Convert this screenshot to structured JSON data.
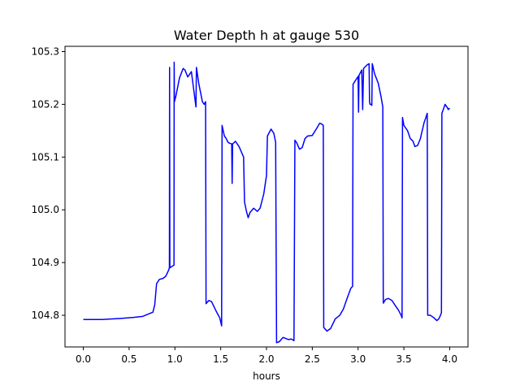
{
  "chart_data": {
    "type": "line",
    "title": "Water Depth h at gauge 530",
    "xlabel": "hours",
    "ylabel": "",
    "xlim": [
      -0.2,
      4.2
    ],
    "ylim": [
      104.74,
      105.31
    ],
    "xticks": [
      0.0,
      0.5,
      1.0,
      1.5,
      2.0,
      2.5,
      3.0,
      3.5,
      4.0
    ],
    "xtick_labels": [
      "0.0",
      "0.5",
      "1.0",
      "1.5",
      "2.0",
      "2.5",
      "3.0",
      "3.5",
      "4.0"
    ],
    "yticks": [
      104.8,
      104.9,
      105.0,
      105.1,
      105.2,
      105.3
    ],
    "ytick_labels": [
      "104.8",
      "104.9",
      "105.0",
      "105.1",
      "105.2",
      "105.3"
    ],
    "grid": false,
    "series": [
      {
        "color": "#0000ff",
        "points": [
          [
            0.0,
            104.792
          ],
          [
            0.2,
            104.792
          ],
          [
            0.4,
            104.794
          ],
          [
            0.55,
            104.796
          ],
          [
            0.65,
            104.798
          ],
          [
            0.72,
            104.803
          ],
          [
            0.76,
            104.806
          ],
          [
            0.78,
            104.82
          ],
          [
            0.8,
            104.86
          ],
          [
            0.83,
            104.868
          ],
          [
            0.87,
            104.87
          ],
          [
            0.9,
            104.874
          ],
          [
            0.93,
            104.885
          ],
          [
            0.94,
            104.89
          ],
          [
            0.942,
            105.27
          ],
          [
            0.945,
            104.89
          ],
          [
            0.97,
            104.893
          ],
          [
            0.99,
            104.895
          ],
          [
            0.992,
            105.28
          ],
          [
            0.995,
            105.205
          ],
          [
            1.01,
            105.215
          ],
          [
            1.05,
            105.25
          ],
          [
            1.09,
            105.268
          ],
          [
            1.11,
            105.265
          ],
          [
            1.14,
            105.252
          ],
          [
            1.18,
            105.262
          ],
          [
            1.2,
            105.235
          ],
          [
            1.23,
            105.195
          ],
          [
            1.235,
            105.27
          ],
          [
            1.26,
            105.24
          ],
          [
            1.3,
            105.205
          ],
          [
            1.32,
            105.2
          ],
          [
            1.335,
            105.205
          ],
          [
            1.34,
            104.822
          ],
          [
            1.37,
            104.828
          ],
          [
            1.4,
            104.826
          ],
          [
            1.45,
            104.808
          ],
          [
            1.49,
            104.795
          ],
          [
            1.51,
            104.78
          ],
          [
            1.515,
            105.16
          ],
          [
            1.54,
            105.14
          ],
          [
            1.56,
            105.135
          ],
          [
            1.58,
            105.128
          ],
          [
            1.6,
            105.126
          ],
          [
            1.62,
            105.125
          ],
          [
            1.625,
            105.05
          ],
          [
            1.63,
            105.125
          ],
          [
            1.65,
            105.128
          ],
          [
            1.66,
            105.13
          ],
          [
            1.7,
            105.12
          ],
          [
            1.75,
            105.1
          ],
          [
            1.76,
            105.015
          ],
          [
            1.78,
            104.998
          ],
          [
            1.8,
            104.985
          ],
          [
            1.82,
            104.995
          ],
          [
            1.86,
            105.003
          ],
          [
            1.9,
            104.997
          ],
          [
            1.93,
            105.003
          ],
          [
            1.97,
            105.03
          ],
          [
            2.0,
            105.065
          ],
          [
            2.01,
            105.14
          ],
          [
            2.05,
            105.153
          ],
          [
            2.08,
            105.145
          ],
          [
            2.1,
            105.128
          ],
          [
            2.11,
            104.748
          ],
          [
            2.14,
            104.75
          ],
          [
            2.18,
            104.758
          ],
          [
            2.21,
            104.756
          ],
          [
            2.24,
            104.754
          ],
          [
            2.27,
            104.755
          ],
          [
            2.3,
            104.752
          ],
          [
            2.31,
            105.132
          ],
          [
            2.33,
            105.127
          ],
          [
            2.36,
            105.115
          ],
          [
            2.39,
            105.118
          ],
          [
            2.42,
            105.135
          ],
          [
            2.45,
            105.14
          ],
          [
            2.5,
            105.141
          ],
          [
            2.55,
            105.155
          ],
          [
            2.58,
            105.164
          ],
          [
            2.6,
            105.163
          ],
          [
            2.62,
            105.16
          ],
          [
            2.625,
            104.777
          ],
          [
            2.66,
            104.77
          ],
          [
            2.7,
            104.775
          ],
          [
            2.75,
            104.793
          ],
          [
            2.8,
            104.8
          ],
          [
            2.84,
            104.812
          ],
          [
            2.88,
            104.832
          ],
          [
            2.92,
            104.851
          ],
          [
            2.94,
            104.855
          ],
          [
            2.945,
            105.238
          ],
          [
            2.97,
            105.245
          ],
          [
            2.99,
            105.25
          ],
          [
            3.0,
            105.253
          ],
          [
            3.005,
            105.185
          ],
          [
            3.01,
            105.255
          ],
          [
            3.04,
            105.265
          ],
          [
            3.05,
            105.19
          ],
          [
            3.06,
            105.268
          ],
          [
            3.1,
            105.275
          ],
          [
            3.12,
            105.277
          ],
          [
            3.125,
            105.205
          ],
          [
            3.13,
            105.2
          ],
          [
            3.14,
            105.2
          ],
          [
            3.15,
            105.198
          ],
          [
            3.155,
            105.277
          ],
          [
            3.18,
            105.258
          ],
          [
            3.22,
            105.24
          ],
          [
            3.25,
            105.215
          ],
          [
            3.27,
            105.195
          ],
          [
            3.275,
            104.823
          ],
          [
            3.3,
            104.83
          ],
          [
            3.33,
            104.832
          ],
          [
            3.37,
            104.828
          ],
          [
            3.4,
            104.82
          ],
          [
            3.44,
            104.81
          ],
          [
            3.47,
            104.8
          ],
          [
            3.48,
            104.795
          ],
          [
            3.485,
            105.175
          ],
          [
            3.5,
            105.16
          ],
          [
            3.54,
            105.15
          ],
          [
            3.57,
            105.135
          ],
          [
            3.6,
            105.13
          ],
          [
            3.62,
            105.12
          ],
          [
            3.65,
            105.122
          ],
          [
            3.68,
            105.135
          ],
          [
            3.72,
            105.165
          ],
          [
            3.74,
            105.175
          ],
          [
            3.755,
            105.183
          ],
          [
            3.76,
            104.8
          ],
          [
            3.79,
            104.8
          ],
          [
            3.83,
            104.795
          ],
          [
            3.86,
            104.79
          ],
          [
            3.88,
            104.793
          ],
          [
            3.9,
            104.8
          ],
          [
            3.91,
            104.805
          ],
          [
            3.915,
            105.183
          ],
          [
            3.93,
            105.19
          ],
          [
            3.95,
            105.2
          ],
          [
            3.97,
            105.195
          ],
          [
            3.985,
            105.19
          ],
          [
            4.0,
            105.193
          ]
        ]
      }
    ]
  }
}
